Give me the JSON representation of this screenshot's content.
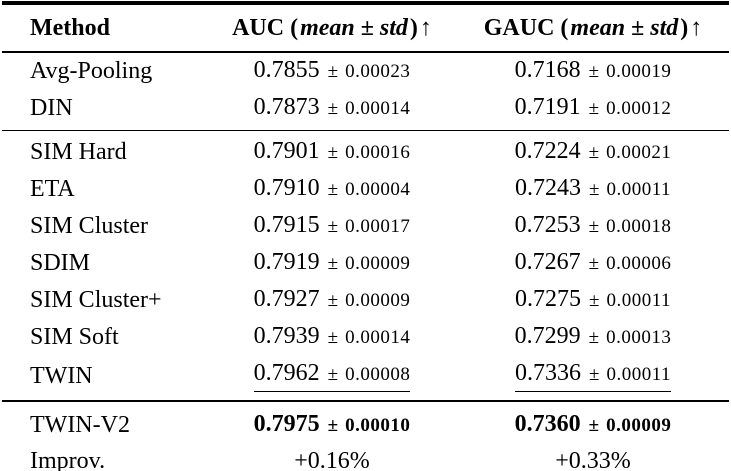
{
  "table": {
    "columns": [
      {
        "label": "Method"
      },
      {
        "label": "AUC",
        "qualifier": "mean ± std"
      },
      {
        "label": "GAUC",
        "qualifier": "mean ± std"
      }
    ],
    "symbols": {
      "pm": "±",
      "open": "(",
      "close": ")",
      "arrow": "↑"
    },
    "rows": [
      {
        "method": "Avg-Pooling",
        "auc": {
          "mean": "0.7855",
          "std": "0.00023"
        },
        "gauc": {
          "mean": "0.7168",
          "std": "0.00019"
        }
      },
      {
        "method": "DIN",
        "auc": {
          "mean": "0.7873",
          "std": "0.00014"
        },
        "gauc": {
          "mean": "0.7191",
          "std": "0.00012"
        }
      },
      {
        "method": "SIM Hard",
        "auc": {
          "mean": "0.7901",
          "std": "0.00016"
        },
        "gauc": {
          "mean": "0.7224",
          "std": "0.00021"
        }
      },
      {
        "method": "ETA",
        "auc": {
          "mean": "0.7910",
          "std": "0.00004"
        },
        "gauc": {
          "mean": "0.7243",
          "std": "0.00011"
        }
      },
      {
        "method": "SIM Cluster",
        "auc": {
          "mean": "0.7915",
          "std": "0.00017"
        },
        "gauc": {
          "mean": "0.7253",
          "std": "0.00018"
        }
      },
      {
        "method": "SDIM",
        "auc": {
          "mean": "0.7919",
          "std": "0.00009"
        },
        "gauc": {
          "mean": "0.7267",
          "std": "0.00006"
        }
      },
      {
        "method": "SIM Cluster+",
        "auc": {
          "mean": "0.7927",
          "std": "0.00009"
        },
        "gauc": {
          "mean": "0.7275",
          "std": "0.00011"
        }
      },
      {
        "method": "SIM Soft",
        "auc": {
          "mean": "0.7939",
          "std": "0.00014"
        },
        "gauc": {
          "mean": "0.7299",
          "std": "0.00013"
        }
      },
      {
        "method": "TWIN",
        "auc": {
          "mean": "0.7962",
          "std": "0.00008"
        },
        "gauc": {
          "mean": "0.7336",
          "std": "0.00011"
        }
      },
      {
        "method": "TWIN-V2",
        "auc": {
          "mean": "0.7975",
          "std": "0.00010"
        },
        "gauc": {
          "mean": "0.7360",
          "std": "0.00009"
        }
      },
      {
        "method": "Improv.",
        "auc_text": "+0.16%",
        "gauc_text": "+0.33%"
      }
    ]
  }
}
